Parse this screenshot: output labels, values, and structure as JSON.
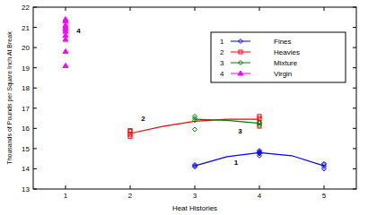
{
  "chart_data": {
    "type": "scatter",
    "x_label": "Heat Histories",
    "y_label": "Thousands of Pounds per Square Inch At Break",
    "xlim": [
      0.5,
      5.5
    ],
    "xticks": [
      1,
      2,
      3,
      4,
      5
    ],
    "ylim": [
      13,
      22
    ],
    "yticks": [
      13,
      14,
      15,
      16,
      17,
      18,
      19,
      20,
      21,
      22
    ],
    "grid": false,
    "legend": "upper right",
    "series": [
      {
        "name": "Fines",
        "label": "1",
        "color": "#0000ff",
        "marker": "diamond",
        "x": [
          3,
          3,
          3,
          4,
          4,
          4,
          4,
          4,
          5,
          5,
          5,
          5
        ],
        "values": [
          14.1,
          14.15,
          14.2,
          14.65,
          14.75,
          14.8,
          14.85,
          14.9,
          14.0,
          14.1,
          14.2,
          14.25
        ],
        "fit_x": [
          3,
          3.5,
          4,
          4.5,
          5
        ],
        "fit_values": [
          14.15,
          14.6,
          14.8,
          14.65,
          14.15
        ]
      },
      {
        "name": "Heavies",
        "label": "2",
        "color": "#ff0000",
        "marker": "square",
        "x": [
          2,
          2,
          2,
          2,
          4,
          4,
          4,
          4
        ],
        "values": [
          15.6,
          15.7,
          15.85,
          15.9,
          16.1,
          16.3,
          16.5,
          16.6
        ],
        "fit_x": [
          2,
          2.5,
          3,
          3.5,
          4
        ],
        "fit_values": [
          15.75,
          16.1,
          16.35,
          16.45,
          16.45
        ]
      },
      {
        "name": "Mixture",
        "label": "3",
        "color": "#008000",
        "marker": "diamond",
        "x": [
          3,
          3,
          3,
          3,
          4,
          4,
          4
        ],
        "values": [
          15.95,
          16.4,
          16.5,
          16.6,
          16.15,
          16.25,
          16.3
        ],
        "fit_x": [
          3,
          3.5,
          4
        ],
        "fit_values": [
          16.45,
          16.4,
          16.25
        ]
      },
      {
        "name": "Virgin",
        "label": "4",
        "color": "#ff00ff",
        "marker": "triangle",
        "x": [
          1,
          1,
          1,
          1,
          1,
          1,
          1,
          1,
          1,
          1
        ],
        "values": [
          19.1,
          19.8,
          20.4,
          20.6,
          20.8,
          20.9,
          21.0,
          21.1,
          21.3,
          21.4
        ],
        "fit_x": [],
        "fit_values": []
      }
    ],
    "annotations": [
      {
        "text": "1",
        "x": 3.64,
        "y": 14.2
      },
      {
        "text": "2",
        "x": 2.2,
        "y": 16.35
      },
      {
        "text": "3",
        "x": 3.7,
        "y": 15.75
      },
      {
        "text": "4",
        "x": 1.2,
        "y": 20.7
      }
    ]
  }
}
